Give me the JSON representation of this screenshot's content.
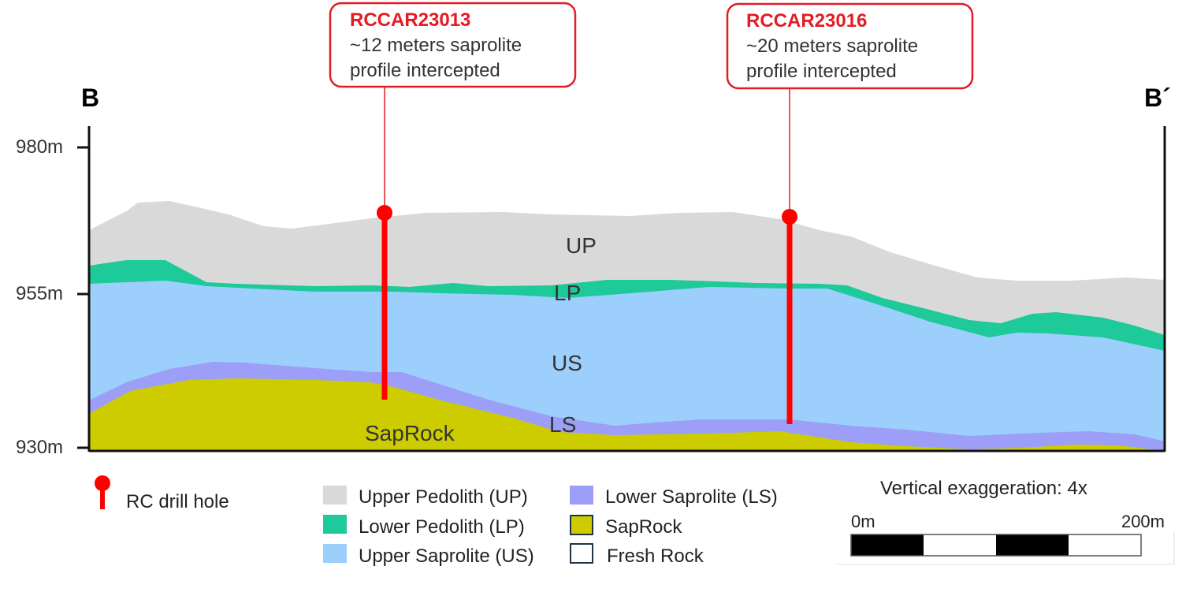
{
  "section": {
    "start_label": "B",
    "end_label": "B´"
  },
  "elevation_labels": [
    "980m",
    "955m",
    "930m"
  ],
  "layer_labels": [
    "UP",
    "LP",
    "US",
    "LS",
    "SapRock"
  ],
  "callouts": [
    {
      "hole": "RCCAR23013",
      "lines": [
        "~12 meters saprolite",
        "profile intercepted"
      ]
    },
    {
      "hole": "RCCAR23016",
      "lines": [
        "~20 meters saprolite",
        "profile intercepted"
      ]
    }
  ],
  "legend": {
    "drill_hole": "RC drill hole",
    "items": [
      "Upper Pedolith (UP)",
      "Lower Pedolith (LP)",
      "Upper Saprolite (US)",
      "Lower Saprolite (LS)",
      "SapRock",
      "Fresh Rock"
    ]
  },
  "scale": {
    "title": "Vertical exaggeration: 4x",
    "start": "0m",
    "end": "200m"
  }
}
